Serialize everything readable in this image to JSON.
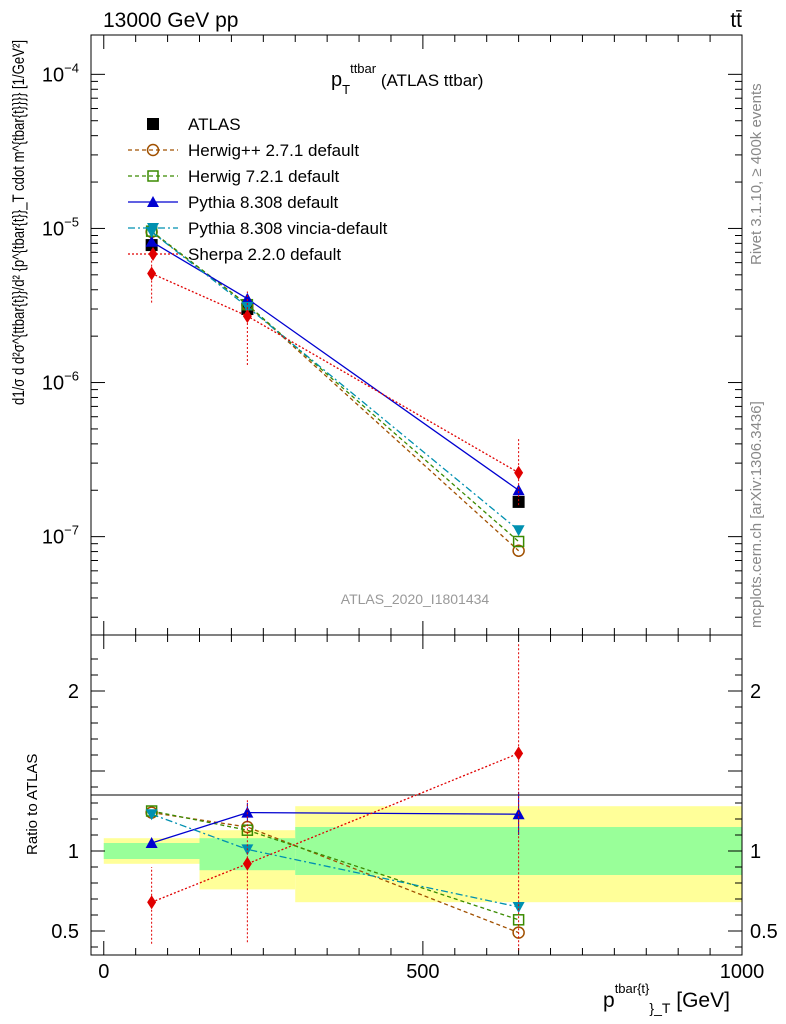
{
  "header": {
    "left": "13000 GeV pp",
    "right": "tt̄"
  },
  "side_labels": {
    "rivet": "Rivet 3.1.10, ≥ 400k events",
    "site": "mcplots.cern.ch [arXiv:1306.3436]"
  },
  "chart_data": [
    {
      "type": "line",
      "panel": "main",
      "title_main": "p",
      "title_sup": "ttbar",
      "title_sub": "T",
      "title_rest": " (ATLAS ttbar)",
      "watermark": "ATLAS_2020_I1801434",
      "ylabel": "d1/σ d d²σ^{ttbar{t}}/d² {p^{tbar{t}}_T cdot m^{tbar{t}}}} [1/GeV²]",
      "yscale": "log",
      "ylim": [
        2.3e-08,
        0.00018
      ],
      "xlim": [
        -20,
        1000
      ],
      "y_ticks": [
        {
          "label": "10",
          "exp": "−4",
          "value": 0.0001
        },
        {
          "label": "10",
          "exp": "−5",
          "value": 1e-05
        },
        {
          "label": "10",
          "exp": "−6",
          "value": 1e-06
        },
        {
          "label": "10",
          "exp": "−7",
          "value": 1e-07
        }
      ],
      "legend_position": "top-left",
      "x": [
        75,
        225,
        650
      ],
      "series": [
        {
          "name": "ATLAS",
          "color": "#000000",
          "marker": "square-filled",
          "dash": "",
          "values": [
            7.8e-06,
            3e-06,
            1.68e-07
          ],
          "err_lo": [],
          "err_hi": []
        },
        {
          "name": "Herwig++ 2.7.1 default",
          "color": "#a05000",
          "marker": "circle-open",
          "dash": "4,3",
          "values": [
            9.5e-06,
            3.2e-06,
            8.1e-08
          ],
          "err_lo": [],
          "err_hi": []
        },
        {
          "name": "Herwig 7.2.1 default",
          "color": "#3a8a00",
          "marker": "square-open",
          "dash": "4,3",
          "values": [
            9.6e-06,
            3.2e-06,
            9.3e-08
          ],
          "err_lo": [],
          "err_hi": []
        },
        {
          "name": "Pythia 8.308 default",
          "color": "#0000d0",
          "marker": "triangle-up",
          "dash": "",
          "values": [
            8.2e-06,
            3.5e-06,
            2e-07
          ],
          "err_lo": [],
          "err_hi": []
        },
        {
          "name": "Pythia 8.308 vincia-default",
          "color": "#0090b0",
          "marker": "triangle-down",
          "dash": "7,3,2,3",
          "values": [
            9.5e-06,
            3.1e-06,
            1.1e-07
          ],
          "err_lo": [],
          "err_hi": []
        },
        {
          "name": "Sherpa 2.2.0 default",
          "color": "#e00000",
          "marker": "diamond",
          "dash": "2,2",
          "values": [
            5.1e-06,
            2.7e-06,
            2.6e-07
          ],
          "err_lo": [
            3.3e-06,
            1.3e-06,
            1.6e-07
          ],
          "err_hi": [
            6.5e-06,
            3.9e-06,
            4.4e-07
          ]
        }
      ]
    },
    {
      "type": "line",
      "panel": "ratio",
      "ylabel": "Ratio to ATLAS",
      "xlabel_main": "p",
      "xlabel_sup": "tbar{t}",
      "xlabel_sub": "}_T",
      "xlabel_rest": " [GeV]",
      "ylim": [
        0.35,
        2.35
      ],
      "xlim": [
        -20,
        1000
      ],
      "y_ticks": [
        {
          "label": "2",
          "value": 2
        },
        {
          "label": "1",
          "value": 1
        },
        {
          "label": "0.5",
          "value": 0.5
        }
      ],
      "x_ticks": [
        {
          "label": "0",
          "value": 0
        },
        {
          "label": "500",
          "value": 500
        },
        {
          "label": "1000",
          "value": 1000
        }
      ],
      "bands": [
        {
          "x0": 0,
          "x1": 150,
          "inner": [
            0.95,
            1.05
          ],
          "outer": [
            0.92,
            1.08
          ]
        },
        {
          "x0": 150,
          "x1": 300,
          "inner": [
            0.88,
            1.08
          ],
          "outer": [
            0.76,
            1.13
          ]
        },
        {
          "x0": 300,
          "x1": 1000,
          "inner": [
            0.85,
            1.15
          ],
          "outer": [
            0.68,
            1.28
          ]
        }
      ],
      "x": [
        75,
        225,
        650
      ],
      "series": [
        {
          "name": "Herwig++ 2.7.1 default",
          "values": [
            1.24,
            1.15,
            0.49
          ],
          "err_lo": [],
          "err_hi": []
        },
        {
          "name": "Herwig 7.2.1 default",
          "values": [
            1.25,
            1.13,
            0.57
          ],
          "err_lo": [],
          "err_hi": []
        },
        {
          "name": "Pythia 8.308 default",
          "values": [
            1.05,
            1.24,
            1.23
          ],
          "err_lo": [
            1.05,
            1.18,
            1.1
          ],
          "err_hi": [
            1.05,
            1.3,
            1.37
          ]
        },
        {
          "name": "Pythia 8.308 vincia-default",
          "values": [
            1.23,
            1.01,
            0.65
          ],
          "err_lo": [],
          "err_hi": []
        },
        {
          "name": "Sherpa 2.2.0 default",
          "values": [
            0.68,
            0.92,
            1.61
          ],
          "err_lo": [
            0.42,
            0.43,
            0.38
          ],
          "err_hi": [
            0.9,
            1.32,
            2.3
          ]
        }
      ]
    }
  ]
}
